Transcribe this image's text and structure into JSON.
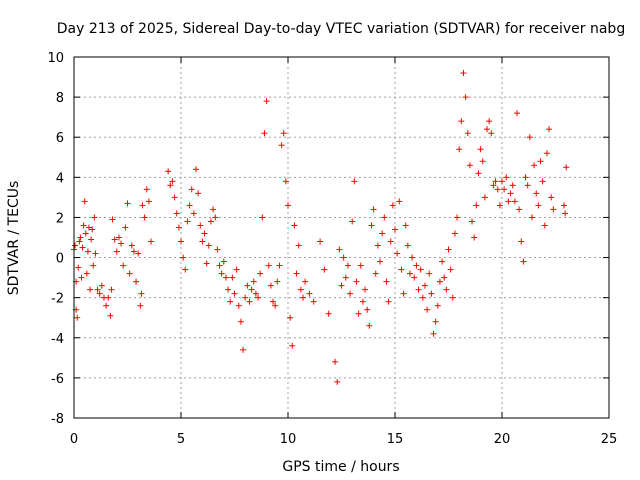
{
  "chart_data": {
    "type": "scatter",
    "title": "Day 213 of 2025, Sidereal Day-to-day VTEC variation (SDTVAR) for receiver nabg",
    "xlabel": "GPS time / hours",
    "ylabel": "SDTVAR / TECUs",
    "xlim": [
      0,
      25
    ],
    "ylim": [
      -8,
      10
    ],
    "xticks": [
      0,
      5,
      10,
      15,
      20,
      25
    ],
    "yticks": [
      -8,
      -6,
      -4,
      -2,
      0,
      2,
      4,
      6,
      8,
      10
    ],
    "grid": true,
    "marker": "+",
    "marker_color": "#ff0000",
    "series": [
      {
        "name": "SDTVAR",
        "points": [
          [
            0.0,
            0.4
          ],
          [
            0.05,
            0.6
          ],
          [
            0.1,
            -1.2
          ],
          [
            0.1,
            -2.6
          ],
          [
            0.15,
            -3.0
          ],
          [
            0.2,
            -0.5
          ],
          [
            0.25,
            0.8
          ],
          [
            0.3,
            1.0
          ],
          [
            0.35,
            -1.0
          ],
          [
            0.4,
            0.5
          ],
          [
            0.45,
            1.6
          ],
          [
            0.5,
            2.8
          ],
          [
            0.55,
            1.2
          ],
          [
            0.6,
            -0.8
          ],
          [
            0.65,
            0.3
          ],
          [
            0.7,
            1.5
          ],
          [
            0.75,
            -1.6
          ],
          [
            0.8,
            0.9
          ],
          [
            0.85,
            1.4
          ],
          [
            0.9,
            -0.4
          ],
          [
            0.95,
            2.0
          ],
          [
            1.0,
            0.2
          ],
          [
            1.1,
            -1.6
          ],
          [
            1.2,
            -1.8
          ],
          [
            1.3,
            -1.4
          ],
          [
            1.4,
            -2.0
          ],
          [
            1.5,
            -2.4
          ],
          [
            1.6,
            -2.0
          ],
          [
            1.7,
            -2.9
          ],
          [
            1.75,
            -1.6
          ],
          [
            1.8,
            1.9
          ],
          [
            1.9,
            0.9
          ],
          [
            2.0,
            0.3
          ],
          [
            2.1,
            1.0
          ],
          [
            2.2,
            0.7
          ],
          [
            2.3,
            -0.4
          ],
          [
            2.4,
            1.5
          ],
          [
            2.5,
            2.7
          ],
          [
            2.6,
            -0.8
          ],
          [
            2.7,
            0.6
          ],
          [
            2.8,
            0.3
          ],
          [
            2.9,
            -1.2
          ],
          [
            3.0,
            0.2
          ],
          [
            3.1,
            -2.4
          ],
          [
            3.15,
            -1.8
          ],
          [
            3.2,
            2.6
          ],
          [
            3.3,
            2.0
          ],
          [
            3.4,
            3.4
          ],
          [
            3.5,
            2.8
          ],
          [
            3.6,
            0.8
          ],
          [
            4.4,
            4.3
          ],
          [
            4.5,
            3.6
          ],
          [
            4.6,
            3.8
          ],
          [
            4.7,
            3.0
          ],
          [
            4.8,
            2.2
          ],
          [
            4.9,
            1.5
          ],
          [
            5.0,
            0.8
          ],
          [
            5.1,
            0.0
          ],
          [
            5.2,
            -0.6
          ],
          [
            5.3,
            1.8
          ],
          [
            5.4,
            2.6
          ],
          [
            5.5,
            3.4
          ],
          [
            5.6,
            2.2
          ],
          [
            5.7,
            4.4
          ],
          [
            5.8,
            3.2
          ],
          [
            5.9,
            1.6
          ],
          [
            6.0,
            0.8
          ],
          [
            6.1,
            1.2
          ],
          [
            6.2,
            -0.3
          ],
          [
            6.3,
            0.6
          ],
          [
            6.4,
            1.8
          ],
          [
            6.5,
            2.4
          ],
          [
            6.6,
            2.0
          ],
          [
            6.7,
            0.4
          ],
          [
            6.8,
            -0.4
          ],
          [
            6.9,
            -0.8
          ],
          [
            7.0,
            -0.2
          ],
          [
            7.1,
            -1.0
          ],
          [
            7.2,
            -1.6
          ],
          [
            7.3,
            -2.2
          ],
          [
            7.4,
            -1.0
          ],
          [
            7.5,
            -1.8
          ],
          [
            7.6,
            -0.6
          ],
          [
            7.7,
            -2.4
          ],
          [
            7.8,
            -3.2
          ],
          [
            7.9,
            -4.6
          ],
          [
            8.0,
            -2.0
          ],
          [
            8.1,
            -1.4
          ],
          [
            8.2,
            -2.2
          ],
          [
            8.3,
            -1.6
          ],
          [
            8.4,
            -1.2
          ],
          [
            8.5,
            -1.8
          ],
          [
            8.6,
            -2.0
          ],
          [
            8.7,
            -0.8
          ],
          [
            8.8,
            2.0
          ],
          [
            8.9,
            6.2
          ],
          [
            9.0,
            7.8
          ],
          [
            9.1,
            -0.4
          ],
          [
            9.2,
            -1.4
          ],
          [
            9.3,
            -2.2
          ],
          [
            9.4,
            -2.4
          ],
          [
            9.5,
            -1.2
          ],
          [
            9.6,
            -0.4
          ],
          [
            9.7,
            5.6
          ],
          [
            9.8,
            6.2
          ],
          [
            9.9,
            3.8
          ],
          [
            10.0,
            2.6
          ],
          [
            10.1,
            -3.0
          ],
          [
            10.2,
            -4.4
          ],
          [
            10.3,
            1.6
          ],
          [
            10.4,
            -0.8
          ],
          [
            10.5,
            0.6
          ],
          [
            10.6,
            -1.6
          ],
          [
            10.7,
            -2.0
          ],
          [
            10.8,
            -1.2
          ],
          [
            11.0,
            -1.8
          ],
          [
            11.2,
            -2.2
          ],
          [
            11.5,
            0.8
          ],
          [
            11.7,
            -0.6
          ],
          [
            11.9,
            -2.8
          ],
          [
            12.2,
            -5.2
          ],
          [
            12.3,
            -6.2
          ],
          [
            12.4,
            0.4
          ],
          [
            12.5,
            -1.4
          ],
          [
            12.6,
            0.0
          ],
          [
            12.7,
            -1.0
          ],
          [
            12.8,
            -0.4
          ],
          [
            12.9,
            -1.8
          ],
          [
            13.0,
            1.8
          ],
          [
            13.1,
            3.8
          ],
          [
            13.2,
            -1.2
          ],
          [
            13.3,
            -2.8
          ],
          [
            13.4,
            -0.4
          ],
          [
            13.5,
            -2.2
          ],
          [
            13.6,
            -1.6
          ],
          [
            13.7,
            -2.6
          ],
          [
            13.8,
            -3.4
          ],
          [
            13.9,
            1.6
          ],
          [
            14.0,
            2.4
          ],
          [
            14.1,
            -0.8
          ],
          [
            14.2,
            0.6
          ],
          [
            14.3,
            -0.2
          ],
          [
            14.4,
            1.2
          ],
          [
            14.5,
            2.0
          ],
          [
            14.6,
            -1.2
          ],
          [
            14.7,
            -2.2
          ],
          [
            14.8,
            0.8
          ],
          [
            14.9,
            2.6
          ],
          [
            15.0,
            1.4
          ],
          [
            15.1,
            0.2
          ],
          [
            15.2,
            2.8
          ],
          [
            15.3,
            -0.6
          ],
          [
            15.4,
            -1.8
          ],
          [
            15.5,
            1.6
          ],
          [
            15.6,
            0.6
          ],
          [
            15.7,
            -0.8
          ],
          [
            15.8,
            0.0
          ],
          [
            15.9,
            -1.0
          ],
          [
            16.0,
            -0.4
          ],
          [
            16.1,
            -1.6
          ],
          [
            16.2,
            -0.6
          ],
          [
            16.3,
            -2.0
          ],
          [
            16.4,
            -1.4
          ],
          [
            16.5,
            -2.6
          ],
          [
            16.6,
            -0.8
          ],
          [
            16.7,
            -1.8
          ],
          [
            16.8,
            -3.8
          ],
          [
            16.9,
            -3.2
          ],
          [
            17.0,
            -2.4
          ],
          [
            17.1,
            -1.2
          ],
          [
            17.2,
            -0.2
          ],
          [
            17.3,
            -1.0
          ],
          [
            17.4,
            -1.6
          ],
          [
            17.5,
            0.4
          ],
          [
            17.6,
            -0.6
          ],
          [
            17.7,
            -2.0
          ],
          [
            17.8,
            1.2
          ],
          [
            17.9,
            2.0
          ],
          [
            18.0,
            5.4
          ],
          [
            18.1,
            6.8
          ],
          [
            18.2,
            9.2
          ],
          [
            18.3,
            8.0
          ],
          [
            18.4,
            6.2
          ],
          [
            18.5,
            4.6
          ],
          [
            18.6,
            1.8
          ],
          [
            18.7,
            1.0
          ],
          [
            18.8,
            2.6
          ],
          [
            18.9,
            4.2
          ],
          [
            19.0,
            5.4
          ],
          [
            19.1,
            4.8
          ],
          [
            19.2,
            3.0
          ],
          [
            19.3,
            6.4
          ],
          [
            19.4,
            6.8
          ],
          [
            19.5,
            6.2
          ],
          [
            19.6,
            3.6
          ],
          [
            19.7,
            3.8
          ],
          [
            19.8,
            3.4
          ],
          [
            19.9,
            2.6
          ],
          [
            20.0,
            3.8
          ],
          [
            20.1,
            3.4
          ],
          [
            20.2,
            4.0
          ],
          [
            20.3,
            2.8
          ],
          [
            20.4,
            3.2
          ],
          [
            20.5,
            3.6
          ],
          [
            20.6,
            2.8
          ],
          [
            20.7,
            7.2
          ],
          [
            20.8,
            2.4
          ],
          [
            20.9,
            0.8
          ],
          [
            21.0,
            -0.2
          ],
          [
            21.1,
            4.0
          ],
          [
            21.2,
            3.6
          ],
          [
            21.3,
            6.0
          ],
          [
            21.4,
            2.0
          ],
          [
            21.5,
            4.6
          ],
          [
            21.6,
            3.2
          ],
          [
            21.7,
            2.6
          ],
          [
            21.8,
            4.8
          ],
          [
            21.9,
            3.8
          ],
          [
            22.0,
            1.6
          ],
          [
            22.1,
            5.2
          ],
          [
            22.2,
            6.4
          ],
          [
            22.3,
            3.0
          ],
          [
            22.4,
            2.4
          ],
          [
            22.9,
            2.6
          ],
          [
            22.95,
            2.2
          ],
          [
            23.0,
            4.5
          ]
        ]
      }
    ]
  }
}
